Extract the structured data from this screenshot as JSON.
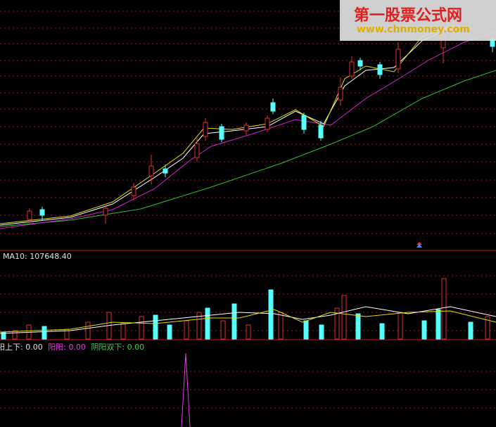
{
  "watermark": {
    "title": "第一股票公式网",
    "url": "www.chnmoney.com"
  },
  "volume_panel": {
    "label": "MA10: 107648.40"
  },
  "indicator_panel": {
    "items": [
      {
        "name": "阳上下:",
        "value": "0.00"
      },
      {
        "name": "阳阳:",
        "value": "0.00"
      },
      {
        "name": "阴阳双下:",
        "value": "0.00"
      }
    ]
  }
}
